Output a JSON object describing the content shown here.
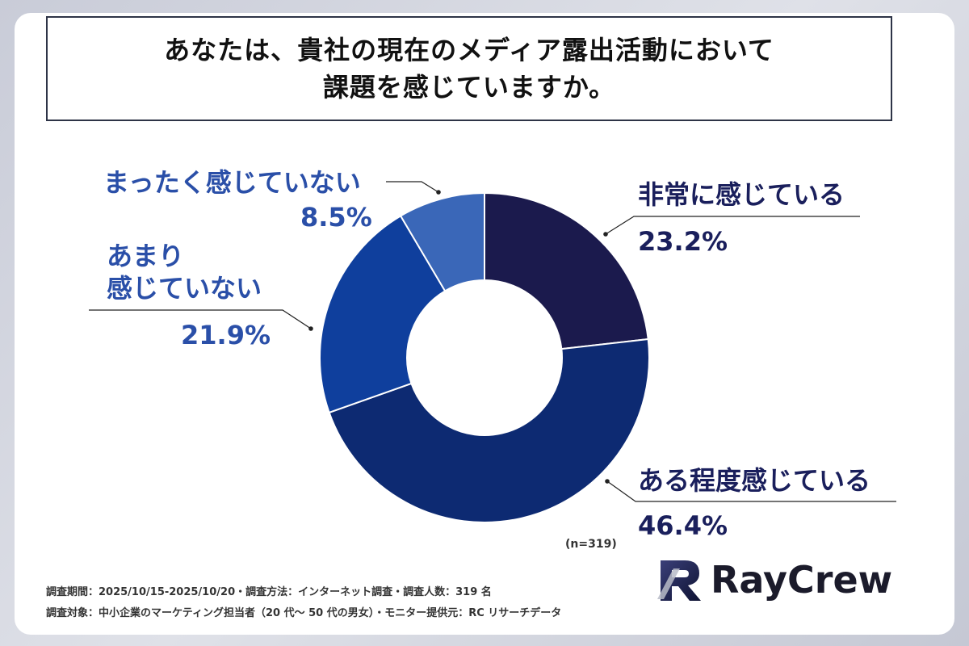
{
  "title": {
    "line1": "あなたは、貴社の現在のメディア露出活動において",
    "line2": "課題を感じていますか。"
  },
  "chart_data": {
    "type": "pie",
    "categories": [
      "非常に感じている",
      "ある程度感じている",
      "あまり感じていない",
      "まったく感じていない"
    ],
    "values": [
      23.2,
      46.4,
      21.9,
      8.5
    ],
    "value_labels": [
      "23.2%",
      "46.4%",
      "21.9%",
      "8.5%"
    ],
    "colors": [
      "#1b1a4d",
      "#0d2a72",
      "#0f3f9d",
      "#3a67b8"
    ],
    "donut": true,
    "sample_size": "(n=319)"
  },
  "labels": {
    "very_much": "非常に感じている",
    "very_much_pct": "23.2%",
    "somewhat": "ある程度感じている",
    "somewhat_pct": "46.4%",
    "not_much_line1": "あまり",
    "not_much_line2": "感じていない",
    "not_much_pct": "21.9%",
    "not_at_all": "まったく感じていない",
    "not_at_all_pct": "8.5%"
  },
  "notes": {
    "line1": "調査期間：2025/10/15-2025/10/20・調査方法：インターネット調査・調査人数：319 名",
    "line2": "調査対象：中小企業のマーケティング担当者（20 代～ 50 代の男女）・モニター提供元：RC リサーチデータ"
  },
  "logo": {
    "text": "RayCrew"
  }
}
